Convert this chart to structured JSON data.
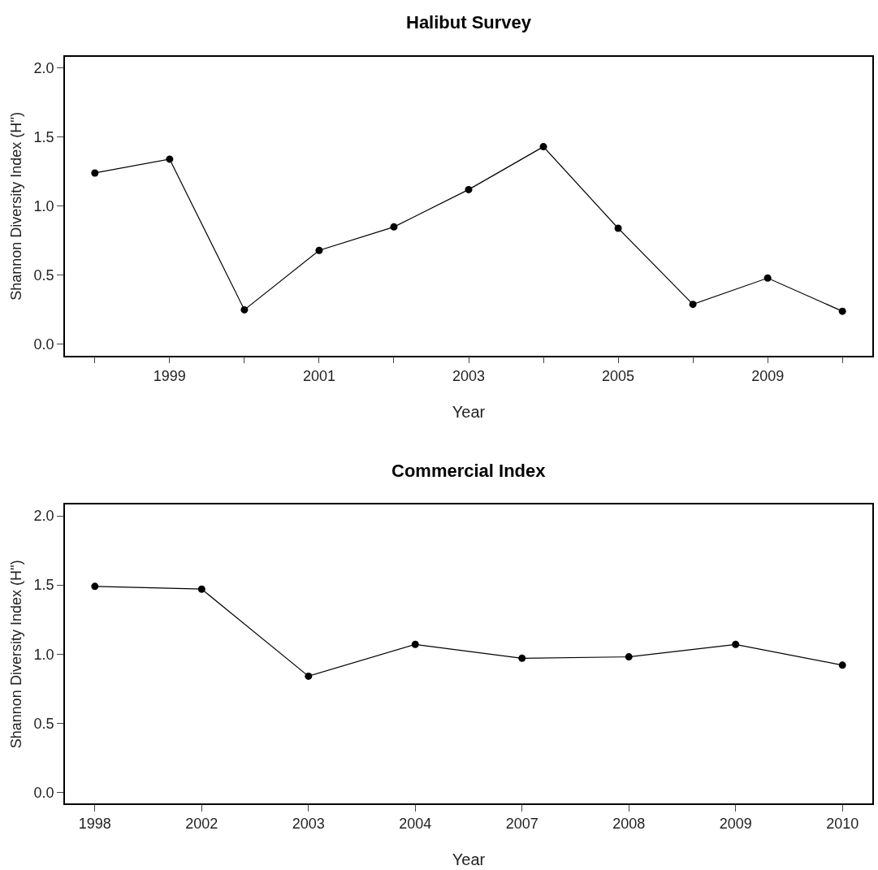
{
  "chart_data": [
    {
      "type": "line",
      "title": "Halibut Survey",
      "xlabel": "Year",
      "ylabel": "Shannon Diversity Index (H'')",
      "categories": [
        null,
        "1999",
        null,
        "2001",
        null,
        "2003",
        null,
        "2005",
        null,
        "2009",
        null
      ],
      "series": [
        {
          "color": "#000000",
          "values": [
            1.24,
            1.34,
            0.25,
            0.68,
            0.85,
            1.12,
            1.43,
            0.84,
            0.29,
            0.48,
            0.24
          ]
        }
      ],
      "ylim": [
        -0.08,
        2.08
      ],
      "yticks": [
        {
          "value": 0,
          "label": "0.0"
        },
        {
          "value": 0.5,
          "label": "0.5"
        },
        {
          "value": 1,
          "label": "1.0"
        },
        {
          "value": 1.5,
          "label": "1.5"
        },
        {
          "value": 2,
          "label": "2.0"
        }
      ],
      "marker": "circle",
      "line_style": "solid"
    },
    {
      "type": "line",
      "title": "Commercial Index",
      "xlabel": "Year",
      "ylabel": "Shannon Diversity Index (H'')",
      "categories": [
        "1998",
        "2002",
        "2003",
        "2004",
        "2007",
        "2008",
        "2009",
        "2010"
      ],
      "series": [
        {
          "color": "#000000",
          "values": [
            1.49,
            1.47,
            0.84,
            1.07,
            0.97,
            0.98,
            1.07,
            0.92
          ]
        }
      ],
      "ylim": [
        -0.08,
        2.08
      ],
      "yticks": [
        {
          "value": 0,
          "label": "0.0"
        },
        {
          "value": 0.5,
          "label": "0.5"
        },
        {
          "value": 1,
          "label": "1.0"
        },
        {
          "value": 1.5,
          "label": "1.5"
        },
        {
          "value": 2,
          "label": "2.0"
        }
      ],
      "marker": "circle",
      "line_style": "solid"
    }
  ]
}
